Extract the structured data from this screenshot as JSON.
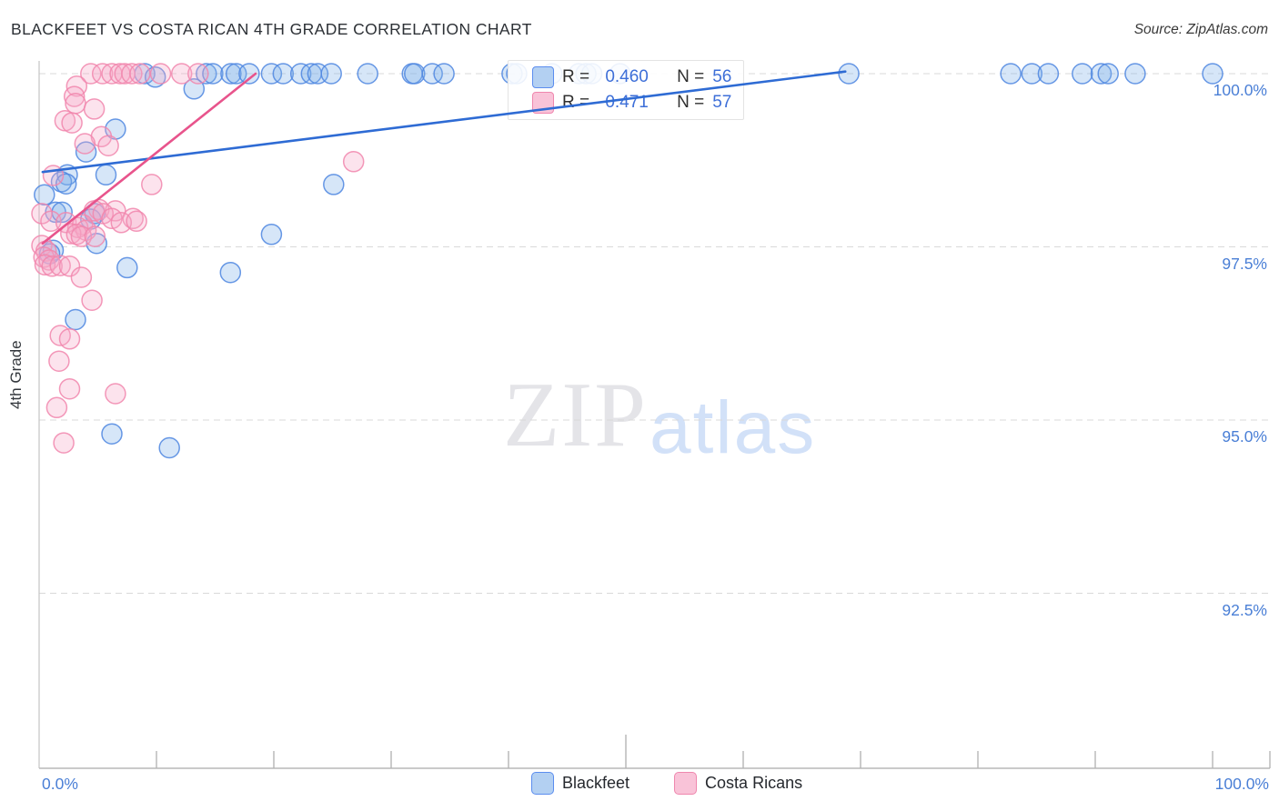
{
  "header": {
    "title": "BLACKFEET VS COSTA RICAN 4TH GRADE CORRELATION CHART",
    "source": "Source: ZipAtlas.com"
  },
  "axes": {
    "y_title": "4th Grade",
    "y_ticks": [
      {
        "label": "100.0%",
        "value": 100.0
      },
      {
        "label": "97.5%",
        "value": 97.5
      },
      {
        "label": "95.0%",
        "value": 95.0
      },
      {
        "label": "92.5%",
        "value": 92.5
      }
    ],
    "x_tick_labels": [
      {
        "label": "0.0%",
        "value": 0.0
      },
      {
        "label": "100.0%",
        "value": 100.0
      }
    ],
    "x_tick_percents": [
      10,
      20,
      30,
      40,
      50,
      60,
      70,
      80,
      90,
      100
    ],
    "x_major_percent": 50
  },
  "legend_box": {
    "rows": [
      {
        "series": "Blackfeet",
        "r_label": "R =",
        "r_value": "0.460",
        "n_label": "N =",
        "n_value": "56"
      },
      {
        "series": "Costa Ricans",
        "r_label": "R =",
        "r_value": "0.471",
        "n_label": "N =",
        "n_value": "57"
      }
    ]
  },
  "bottom_legend": [
    {
      "label": "Blackfeet"
    },
    {
      "label": "Costa Ricans"
    }
  ],
  "watermark": {
    "zip": "ZIP",
    "atlas": "atlas"
  },
  "colors": {
    "blue_stroke": "#4e86e0",
    "blue_fill": "#7fb0ea",
    "blue_trend": "#2e6bd4",
    "pink_stroke": "#f186ad",
    "pink_fill": "#f6a8c6",
    "pink_trend": "#e8548c",
    "axis_text": "#4a7fd6",
    "gridline": "#d9d9d9"
  },
  "chart_data": {
    "type": "scatter",
    "title": "BLACKFEET VS COSTA RICAN 4TH GRADE CORRELATION CHART",
    "xlabel": "",
    "ylabel": "4th Grade",
    "xlim": [
      0,
      100
    ],
    "ylim": [
      90,
      100.2
    ],
    "grid": "horizontal-dashed",
    "legend_position": "top-center-floating",
    "series": [
      {
        "name": "Blackfeet",
        "R": 0.46,
        "N": 56,
        "points": [
          [
            9.0,
            100
          ],
          [
            9.9,
            99.95
          ],
          [
            14.25,
            100
          ],
          [
            14.8,
            100
          ],
          [
            16.35,
            100
          ],
          [
            16.8,
            100
          ],
          [
            17.9,
            100
          ],
          [
            19.8,
            100
          ],
          [
            20.8,
            100
          ],
          [
            22.3,
            100
          ],
          [
            23.2,
            100
          ],
          [
            23.75,
            100
          ],
          [
            24.9,
            100
          ],
          [
            28.0,
            100
          ],
          [
            31.8,
            100
          ],
          [
            32.0,
            100
          ],
          [
            33.5,
            100
          ],
          [
            34.5,
            100
          ],
          [
            40.3,
            100
          ],
          [
            40.7,
            100
          ],
          [
            43.7,
            100
          ],
          [
            46.0,
            100
          ],
          [
            46.6,
            100
          ],
          [
            47.1,
            100
          ],
          [
            49.5,
            100
          ],
          [
            69.0,
            100
          ],
          [
            82.8,
            100
          ],
          [
            84.6,
            100
          ],
          [
            86.0,
            100
          ],
          [
            88.9,
            100
          ],
          [
            90.5,
            100
          ],
          [
            91.1,
            100
          ],
          [
            93.4,
            100
          ],
          [
            100.0,
            100
          ],
          [
            13.2,
            99.78
          ],
          [
            6.5,
            99.2
          ],
          [
            4.0,
            98.87
          ],
          [
            2.4,
            98.54
          ],
          [
            5.7,
            98.54
          ],
          [
            1.9,
            98.44
          ],
          [
            2.3,
            98.41
          ],
          [
            25.1,
            98.4
          ],
          [
            0.45,
            98.25
          ],
          [
            1.4,
            98.0
          ],
          [
            1.95,
            98.0
          ],
          [
            4.75,
            97.98
          ],
          [
            4.4,
            97.9
          ],
          [
            19.8,
            97.68
          ],
          [
            4.9,
            97.55
          ],
          [
            1.2,
            97.45
          ],
          [
            0.9,
            97.4
          ],
          [
            7.5,
            97.2
          ],
          [
            16.3,
            97.13
          ],
          [
            3.1,
            96.45
          ],
          [
            6.2,
            94.8
          ],
          [
            11.1,
            94.6
          ]
        ]
      },
      {
        "name": "Costa Ricans",
        "R": 0.471,
        "N": 57,
        "points": [
          [
            4.4,
            100
          ],
          [
            5.4,
            100
          ],
          [
            6.2,
            100
          ],
          [
            6.9,
            100
          ],
          [
            7.3,
            100
          ],
          [
            7.9,
            100
          ],
          [
            8.6,
            100
          ],
          [
            10.35,
            100
          ],
          [
            12.15,
            100
          ],
          [
            13.55,
            100
          ],
          [
            3.2,
            99.82
          ],
          [
            3.0,
            99.67
          ],
          [
            3.1,
            99.57
          ],
          [
            4.7,
            99.49
          ],
          [
            2.2,
            99.32
          ],
          [
            2.8,
            99.29
          ],
          [
            5.3,
            99.09
          ],
          [
            3.9,
            98.99
          ],
          [
            5.9,
            98.96
          ],
          [
            26.8,
            98.73
          ],
          [
            1.2,
            98.53
          ],
          [
            9.6,
            98.4
          ],
          [
            5.1,
            98.04
          ],
          [
            4.7,
            98.02
          ],
          [
            6.5,
            98.02
          ],
          [
            0.23,
            97.98
          ],
          [
            5.45,
            97.98
          ],
          [
            6.2,
            97.91
          ],
          [
            8.0,
            97.91
          ],
          [
            1.0,
            97.87
          ],
          [
            2.3,
            97.85
          ],
          [
            7.0,
            97.85
          ],
          [
            8.3,
            97.87
          ],
          [
            3.7,
            97.82
          ],
          [
            3.3,
            97.78
          ],
          [
            4.0,
            97.74
          ],
          [
            2.7,
            97.69
          ],
          [
            3.2,
            97.68
          ],
          [
            3.6,
            97.65
          ],
          [
            4.75,
            97.65
          ],
          [
            0.23,
            97.52
          ],
          [
            0.6,
            97.44
          ],
          [
            0.4,
            97.35
          ],
          [
            0.85,
            97.31
          ],
          [
            0.5,
            97.24
          ],
          [
            1.1,
            97.22
          ],
          [
            1.8,
            97.23
          ],
          [
            2.6,
            97.22
          ],
          [
            3.6,
            97.06
          ],
          [
            4.5,
            96.73
          ],
          [
            1.8,
            96.22
          ],
          [
            2.6,
            96.17
          ],
          [
            1.7,
            95.85
          ],
          [
            2.6,
            95.45
          ],
          [
            6.5,
            95.38
          ],
          [
            1.5,
            95.18
          ],
          [
            2.1,
            94.67
          ]
        ]
      }
    ],
    "trend_lines": [
      {
        "series": "Blackfeet",
        "from": [
          0.3,
          98.58
        ],
        "to": [
          68.7,
          100.03
        ]
      },
      {
        "series": "Costa Ricans",
        "from": [
          0.3,
          97.55
        ],
        "to": [
          18.45,
          100.0
        ]
      }
    ]
  }
}
